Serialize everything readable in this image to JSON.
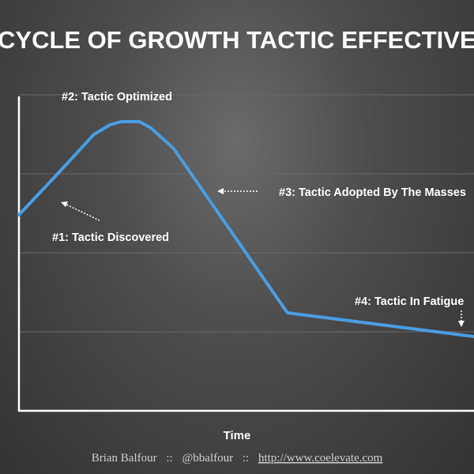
{
  "chart_data": {
    "type": "line",
    "title": "CYCLE OF GROWTH TACTIC EFFECTIVENESS",
    "xlabel": "Time",
    "ylabel": "",
    "grid": true,
    "series": [
      {
        "color": "#4a9de0",
        "points": [
          {
            "x": 0,
            "y": 62
          },
          {
            "x": 8.5,
            "y": 75
          },
          {
            "x": 16.5,
            "y": 87.5
          },
          {
            "x": 20,
            "y": 90.5
          },
          {
            "x": 22.5,
            "y": 91.5
          },
          {
            "x": 26.5,
            "y": 91.5
          },
          {
            "x": 29,
            "y": 89.5
          },
          {
            "x": 34,
            "y": 83
          },
          {
            "x": 59,
            "y": 31
          },
          {
            "x": 100,
            "y": 23.5
          }
        ]
      }
    ],
    "xlim": [
      0,
      100
    ],
    "ylim": [
      0,
      100
    ],
    "annotations": [
      {
        "id": "discovered",
        "text": "#1:  Tactic Discovered"
      },
      {
        "id": "optimized",
        "text": "#2:  Tactic Optimized"
      },
      {
        "id": "adopted",
        "text": "#3:  Tactic Adopted By The Masses"
      },
      {
        "id": "fatigue",
        "text": "#4:  Tactic In Fatigue"
      }
    ]
  },
  "footer": {
    "author": "Brian Balfour",
    "separator": "::",
    "handle": "@bbalfour",
    "url": "http://www.coelevate.com"
  },
  "colors": {
    "line": "#4a9de0",
    "axis": "#ffffff",
    "grid": "#6a6a6a"
  }
}
